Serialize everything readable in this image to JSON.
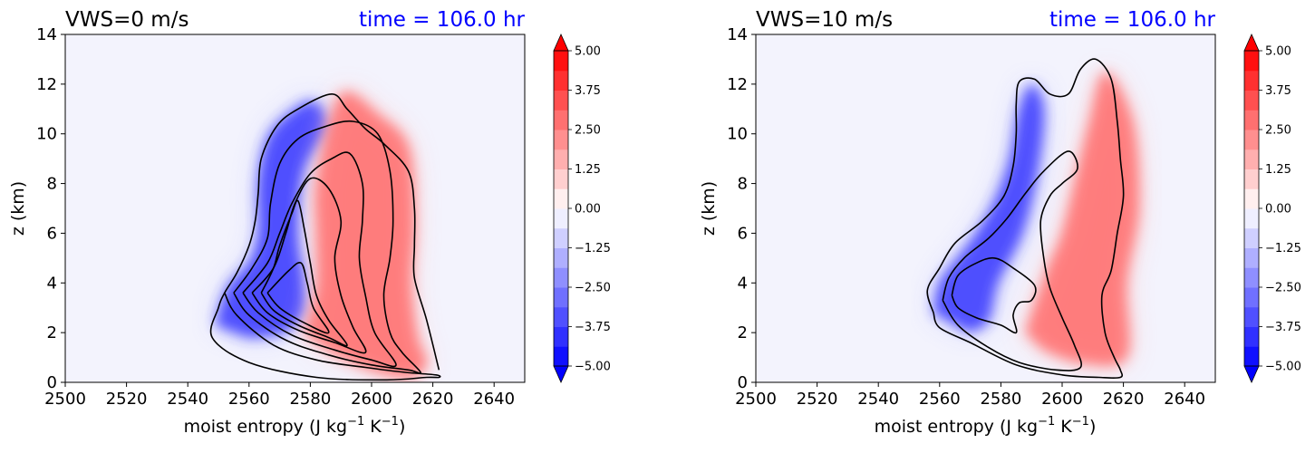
{
  "chart_data": [
    {
      "type": "contour",
      "title": "VWS=0 m/s",
      "time_label": "time = 106.0 hr",
      "time_color": "#0000ff",
      "xlabel": "moist entropy (J kg",
      "xlabel_sup1": "−1",
      "xlabel_mid": " K",
      "xlabel_sup2": "−1",
      "xlabel_end": ")",
      "ylabel": "z (km)",
      "xlim": [
        2500,
        2650
      ],
      "ylim": [
        0,
        14
      ],
      "xticks": [
        "2500",
        "2520",
        "2540",
        "2560",
        "2580",
        "2600",
        "2620",
        "2640"
      ],
      "yticks": [
        "0",
        "2",
        "4",
        "6",
        "8",
        "10",
        "12",
        "14"
      ],
      "colorbar": {
        "range": [
          -5.0,
          5.0
        ],
        "cmap": "bwr",
        "extend": "both",
        "tick_labels": [
          "5.00",
          "3.75",
          "2.50",
          "1.25",
          "0.00",
          "−1.25",
          "−2.50",
          "−3.75",
          "−5.00"
        ]
      },
      "negative_lobe": [
        [
          2549,
          2.3
        ],
        [
          2551,
          3.2
        ],
        [
          2554,
          4.0
        ],
        [
          2560,
          4.8
        ],
        [
          2563,
          6.0
        ],
        [
          2563,
          8.0
        ],
        [
          2566,
          9.8
        ],
        [
          2573,
          10.8
        ],
        [
          2581,
          11.3
        ],
        [
          2586,
          10.3
        ],
        [
          2578,
          8.5
        ],
        [
          2576,
          6.0
        ],
        [
          2578,
          4.2
        ],
        [
          2578,
          2.8
        ],
        [
          2571,
          2.0
        ],
        [
          2560,
          1.8
        ]
      ],
      "positive_lobe": [
        [
          2578,
          2.0
        ],
        [
          2582,
          3.8
        ],
        [
          2582,
          6.0
        ],
        [
          2582,
          8.0
        ],
        [
          2587,
          10.8
        ],
        [
          2592,
          11.7
        ],
        [
          2602,
          10.8
        ],
        [
          2612,
          9.5
        ],
        [
          2614,
          6.5
        ],
        [
          2613,
          4.0
        ],
        [
          2615,
          1.8
        ],
        [
          2618,
          0.8
        ],
        [
          2613,
          0.2
        ],
        [
          2600,
          0.5
        ],
        [
          2587,
          1.2
        ]
      ],
      "contours": [
        [
          [
            2552,
            3.6
          ],
          [
            2556,
            2.7
          ],
          [
            2568,
            1.5
          ],
          [
            2582,
            0.9
          ],
          [
            2598,
            0.6
          ],
          [
            2611,
            0.4
          ],
          [
            2621,
            0.3
          ],
          [
            2622,
            0.2
          ],
          [
            2618,
            0.2
          ],
          [
            2605,
            0.1
          ],
          [
            2582,
            0.2
          ],
          [
            2560,
            0.8
          ],
          [
            2548,
            1.8
          ],
          [
            2550,
            3.0
          ],
          [
            2552,
            3.6
          ],
          [
            2556,
            4.4
          ],
          [
            2560,
            5.5
          ],
          [
            2562,
            6.5
          ],
          [
            2563,
            7.6
          ],
          [
            2564,
            9.0
          ],
          [
            2569,
            10.3
          ],
          [
            2576,
            11.0
          ],
          [
            2587,
            11.6
          ],
          [
            2592,
            11.0
          ],
          [
            2598,
            10.2
          ],
          [
            2604,
            9.6
          ],
          [
            2612,
            8.5
          ],
          [
            2614,
            7.0
          ],
          [
            2614,
            5.5
          ],
          [
            2614,
            4.2
          ],
          [
            2618,
            2.5
          ],
          [
            2622,
            0.5
          ]
        ],
        [
          [
            2555,
            3.6
          ],
          [
            2560,
            2.7
          ],
          [
            2572,
            1.7
          ],
          [
            2586,
            1.1
          ],
          [
            2600,
            0.7
          ],
          [
            2612,
            0.5
          ],
          [
            2616,
            0.4
          ],
          [
            2610,
            1.2
          ],
          [
            2606,
            2.0
          ],
          [
            2604,
            3.5
          ],
          [
            2606,
            5.0
          ],
          [
            2607,
            6.5
          ],
          [
            2606,
            8.5
          ],
          [
            2602,
            10.0
          ],
          [
            2594,
            10.5
          ],
          [
            2585,
            10.3
          ],
          [
            2576,
            9.8
          ],
          [
            2570,
            8.8
          ],
          [
            2567,
            7.2
          ],
          [
            2566,
            5.8
          ],
          [
            2561,
            4.6
          ],
          [
            2555,
            3.6
          ]
        ],
        [
          [
            2558,
            3.6
          ],
          [
            2563,
            2.8
          ],
          [
            2574,
            1.9
          ],
          [
            2588,
            1.3
          ],
          [
            2600,
            0.9
          ],
          [
            2608,
            0.7
          ],
          [
            2601,
            2.0
          ],
          [
            2598,
            3.5
          ],
          [
            2596,
            5.0
          ],
          [
            2597,
            6.5
          ],
          [
            2597,
            8.0
          ],
          [
            2593,
            9.2
          ],
          [
            2587,
            9.0
          ],
          [
            2580,
            8.4
          ],
          [
            2574,
            7.2
          ],
          [
            2570,
            6.0
          ],
          [
            2566,
            4.8
          ],
          [
            2558,
            3.6
          ]
        ],
        [
          [
            2561,
            3.6
          ],
          [
            2566,
            2.8
          ],
          [
            2576,
            2.1
          ],
          [
            2588,
            1.6
          ],
          [
            2598,
            1.2
          ],
          [
            2594,
            2.2
          ],
          [
            2590,
            3.5
          ],
          [
            2588,
            5.0
          ],
          [
            2590,
            6.5
          ],
          [
            2586,
            7.8
          ],
          [
            2580,
            8.2
          ],
          [
            2575,
            7.2
          ],
          [
            2572,
            6.0
          ],
          [
            2568,
            4.6
          ],
          [
            2561,
            3.6
          ]
        ],
        [
          [
            2564,
            3.6
          ],
          [
            2568,
            2.9
          ],
          [
            2576,
            2.3
          ],
          [
            2586,
            1.8
          ],
          [
            2592,
            1.5
          ],
          [
            2586,
            2.5
          ],
          [
            2582,
            3.5
          ],
          [
            2580,
            4.8
          ],
          [
            2578,
            6.2
          ],
          [
            2576,
            7.3
          ],
          [
            2574,
            6.8
          ],
          [
            2570,
            5.5
          ],
          [
            2568,
            4.6
          ],
          [
            2564,
            3.6
          ]
        ],
        [
          [
            2566,
            3.6
          ],
          [
            2570,
            3.0
          ],
          [
            2578,
            2.4
          ],
          [
            2586,
            2.0
          ],
          [
            2581,
            3.0
          ],
          [
            2579,
            4.0
          ],
          [
            2577,
            4.8
          ],
          [
            2573,
            4.5
          ],
          [
            2566,
            3.6
          ]
        ]
      ]
    },
    {
      "type": "contour",
      "title": "VWS=10 m/s",
      "time_label": "time = 106.0 hr",
      "time_color": "#0000ff",
      "xlabel": "moist entropy (J kg",
      "xlabel_sup1": "−1",
      "xlabel_mid": " K",
      "xlabel_sup2": "−1",
      "xlabel_end": ")",
      "ylabel": "z (km)",
      "xlim": [
        2500,
        2650
      ],
      "ylim": [
        0,
        14
      ],
      "xticks": [
        "2500",
        "2520",
        "2540",
        "2560",
        "2580",
        "2600",
        "2620",
        "2640"
      ],
      "yticks": [
        "0",
        "2",
        "4",
        "6",
        "8",
        "10",
        "12",
        "14"
      ],
      "colorbar": {
        "range": [
          -5.0,
          5.0
        ],
        "cmap": "bwr",
        "extend": "both",
        "tick_labels": [
          "5.00",
          "3.75",
          "2.50",
          "1.25",
          "0.00",
          "−1.25",
          "−2.50",
          "−3.75",
          "−5.00"
        ]
      },
      "negative_lobe": [
        [
          2558,
          2.8
        ],
        [
          2560,
          4.0
        ],
        [
          2566,
          5.0
        ],
        [
          2572,
          6.0
        ],
        [
          2578,
          7.3
        ],
        [
          2583,
          9.0
        ],
        [
          2586,
          11.0
        ],
        [
          2590,
          12.0
        ],
        [
          2594,
          11.0
        ],
        [
          2592,
          8.5
        ],
        [
          2587,
          6.0
        ],
        [
          2579,
          4.0
        ],
        [
          2576,
          2.5
        ],
        [
          2570,
          2.0
        ]
      ],
      "positive_lobe": [
        [
          2588,
          2.0
        ],
        [
          2595,
          4.5
        ],
        [
          2600,
          6.0
        ],
        [
          2605,
          8.5
        ],
        [
          2609,
          10.5
        ],
        [
          2614,
          12.5
        ],
        [
          2623,
          10.5
        ],
        [
          2625,
          7.0
        ],
        [
          2621,
          4.0
        ],
        [
          2621,
          1.0
        ],
        [
          2606,
          0.8
        ],
        [
          2594,
          1.3
        ]
      ],
      "contours": [
        [
          [
            2558,
            2.8
          ],
          [
            2556,
            3.7
          ],
          [
            2560,
            4.6
          ],
          [
            2565,
            5.6
          ],
          [
            2574,
            6.5
          ],
          [
            2581,
            7.5
          ],
          [
            2584,
            8.7
          ],
          [
            2585,
            10.0
          ],
          [
            2585,
            11.2
          ],
          [
            2586,
            12.1
          ],
          [
            2591,
            12.2
          ],
          [
            2596,
            11.6
          ],
          [
            2602,
            11.6
          ],
          [
            2606,
            12.6
          ],
          [
            2611,
            13.0
          ],
          [
            2616,
            12.2
          ],
          [
            2618,
            10.5
          ],
          [
            2619,
            9.0
          ],
          [
            2620,
            7.5
          ],
          [
            2618,
            6.0
          ],
          [
            2616,
            4.5
          ],
          [
            2613,
            3.5
          ],
          [
            2614,
            2.0
          ],
          [
            2617,
            1.0
          ],
          [
            2619,
            0.5
          ],
          [
            2619,
            0.2
          ],
          [
            2612,
            0.2
          ],
          [
            2600,
            0.3
          ],
          [
            2585,
            0.7
          ],
          [
            2570,
            1.6
          ],
          [
            2560,
            2.2
          ],
          [
            2558,
            2.8
          ]
        ],
        [
          [
            2561,
            3.3
          ],
          [
            2563,
            4.2
          ],
          [
            2568,
            5.0
          ],
          [
            2576,
            5.8
          ],
          [
            2582,
            6.6
          ],
          [
            2588,
            7.6
          ],
          [
            2594,
            8.5
          ],
          [
            2602,
            9.3
          ],
          [
            2605,
            8.6
          ],
          [
            2600,
            8.0
          ],
          [
            2596,
            7.5
          ],
          [
            2593,
            6.5
          ],
          [
            2594,
            5.0
          ],
          [
            2596,
            3.8
          ],
          [
            2600,
            2.6
          ],
          [
            2604,
            1.5
          ],
          [
            2606,
            0.6
          ],
          [
            2598,
            0.5
          ],
          [
            2586,
            0.8
          ],
          [
            2576,
            1.4
          ],
          [
            2566,
            2.3
          ],
          [
            2561,
            3.3
          ]
        ],
        [
          [
            2564,
            3.5
          ],
          [
            2566,
            4.3
          ],
          [
            2572,
            4.8
          ],
          [
            2578,
            5.0
          ],
          [
            2584,
            4.6
          ],
          [
            2591,
            3.9
          ],
          [
            2590,
            3.3
          ],
          [
            2586,
            3.2
          ],
          [
            2584,
            2.7
          ],
          [
            2585,
            2.0
          ],
          [
            2580,
            2.3
          ],
          [
            2572,
            2.6
          ],
          [
            2566,
            3.0
          ],
          [
            2564,
            3.5
          ]
        ]
      ]
    }
  ]
}
